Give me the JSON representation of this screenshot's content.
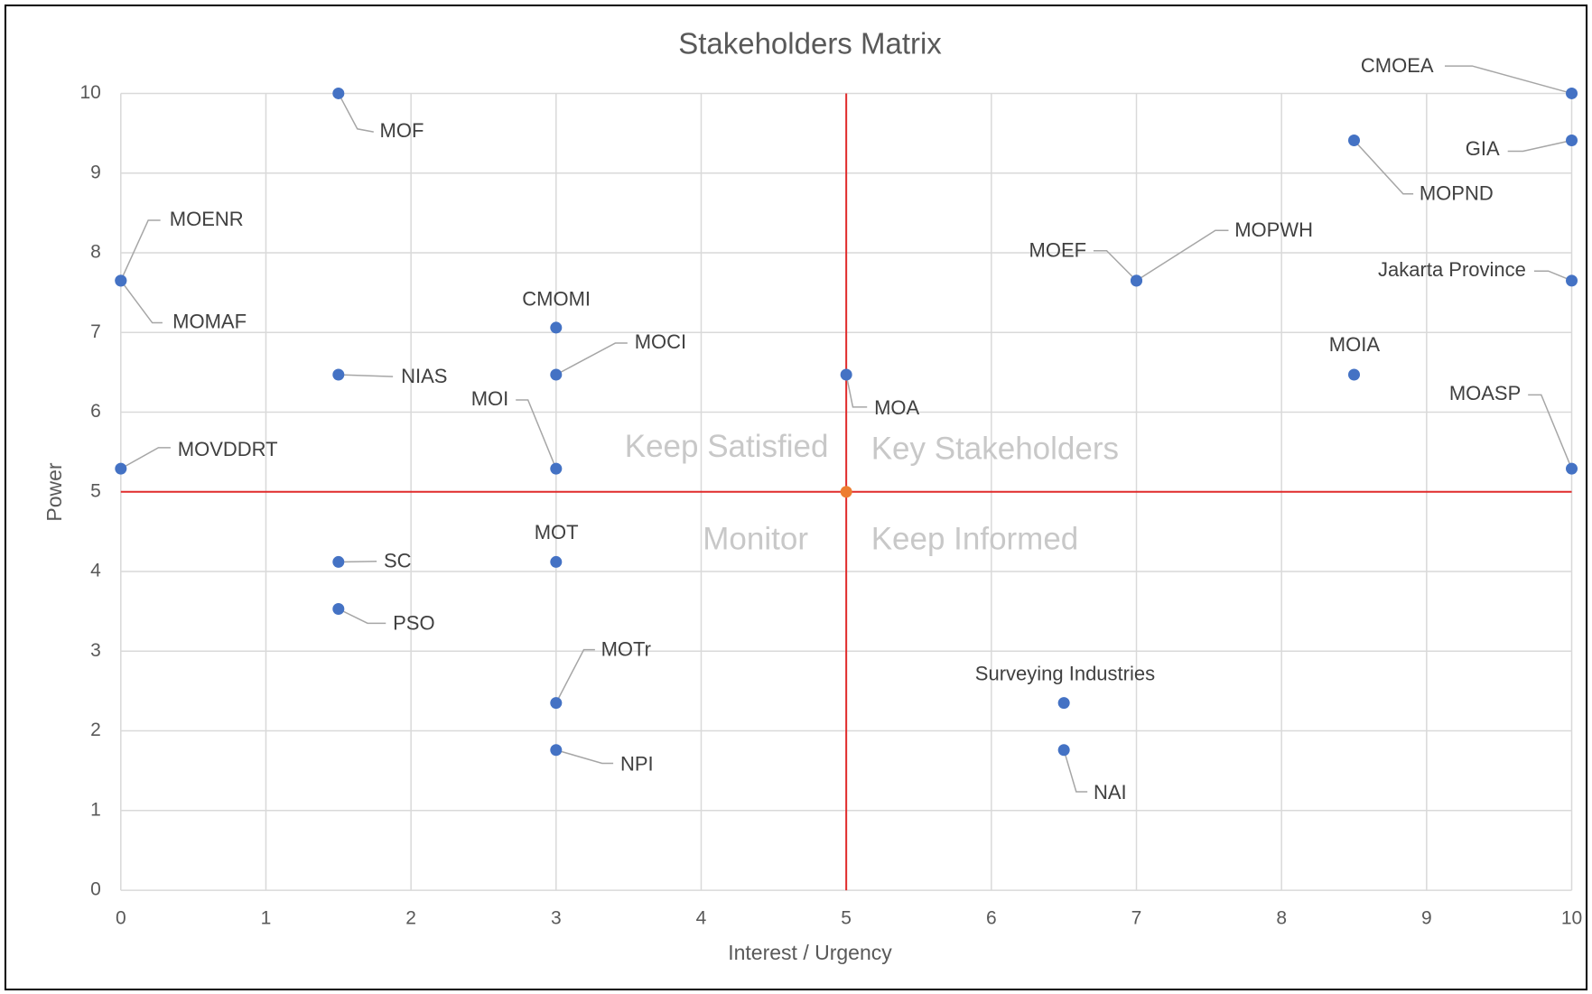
{
  "chart_data": {
    "type": "scatter",
    "title": "Stakeholders Matrix",
    "x_label": "Interest / Urgency",
    "y_label": "Power",
    "xlim": [
      0,
      10
    ],
    "ylim": [
      0,
      10
    ],
    "xticks": [
      0,
      1,
      2,
      3,
      4,
      5,
      6,
      7,
      8,
      9,
      10
    ],
    "yticks": [
      0,
      1,
      2,
      3,
      4,
      5,
      6,
      7,
      8,
      9,
      10
    ],
    "grid": true,
    "point_color": "#4472c4",
    "points": [
      {
        "label": "MOF",
        "x": 1.5,
        "y": 10
      },
      {
        "label": "MOENR",
        "x": 0,
        "y": 7.65
      },
      {
        "label": "MOMAF",
        "x": 0,
        "y": 7.65
      },
      {
        "label": "CMOMI",
        "x": 3,
        "y": 7.06
      },
      {
        "label": "MOCI",
        "x": 3,
        "y": 6.47
      },
      {
        "label": "NIAS",
        "x": 1.5,
        "y": 6.47
      },
      {
        "label": "MOI",
        "x": 3,
        "y": 5.29
      },
      {
        "label": "MOVDDRT",
        "x": 0,
        "y": 5.29
      },
      {
        "label": "MOA",
        "x": 5,
        "y": 6.47
      },
      {
        "label": "SC",
        "x": 1.5,
        "y": 4.12
      },
      {
        "label": "MOT",
        "x": 3,
        "y": 4.12
      },
      {
        "label": "PSO",
        "x": 1.5,
        "y": 3.53
      },
      {
        "label": "MOTr",
        "x": 3,
        "y": 2.35
      },
      {
        "label": "NPI",
        "x": 3,
        "y": 1.76
      },
      {
        "label": "Surveying Industries",
        "x": 6.5,
        "y": 2.35
      },
      {
        "label": "NAI",
        "x": 6.5,
        "y": 1.76
      },
      {
        "label": "MOEF",
        "x": 7,
        "y": 7.65
      },
      {
        "label": "MOPWH",
        "x": 7,
        "y": 7.65
      },
      {
        "label": "CMOEA",
        "x": 10,
        "y": 10
      },
      {
        "label": "GIA",
        "x": 10,
        "y": 9.41
      },
      {
        "label": "MOPND",
        "x": 8.5,
        "y": 9.41
      },
      {
        "label": "Jakarta Province",
        "x": 10,
        "y": 7.65
      },
      {
        "label": "MOIA",
        "x": 8.5,
        "y": 6.47
      },
      {
        "label": "MOASP",
        "x": 10,
        "y": 5.29
      }
    ],
    "center_point": {
      "x": 5,
      "y": 5,
      "color": "#ed7d31"
    },
    "dividers": {
      "x": 5,
      "y": 5,
      "color": "#e02b2b"
    },
    "quadrant_labels": [
      "Keep Satisfied",
      "Key Stakeholders",
      "Monitor",
      "Keep Informed"
    ]
  }
}
